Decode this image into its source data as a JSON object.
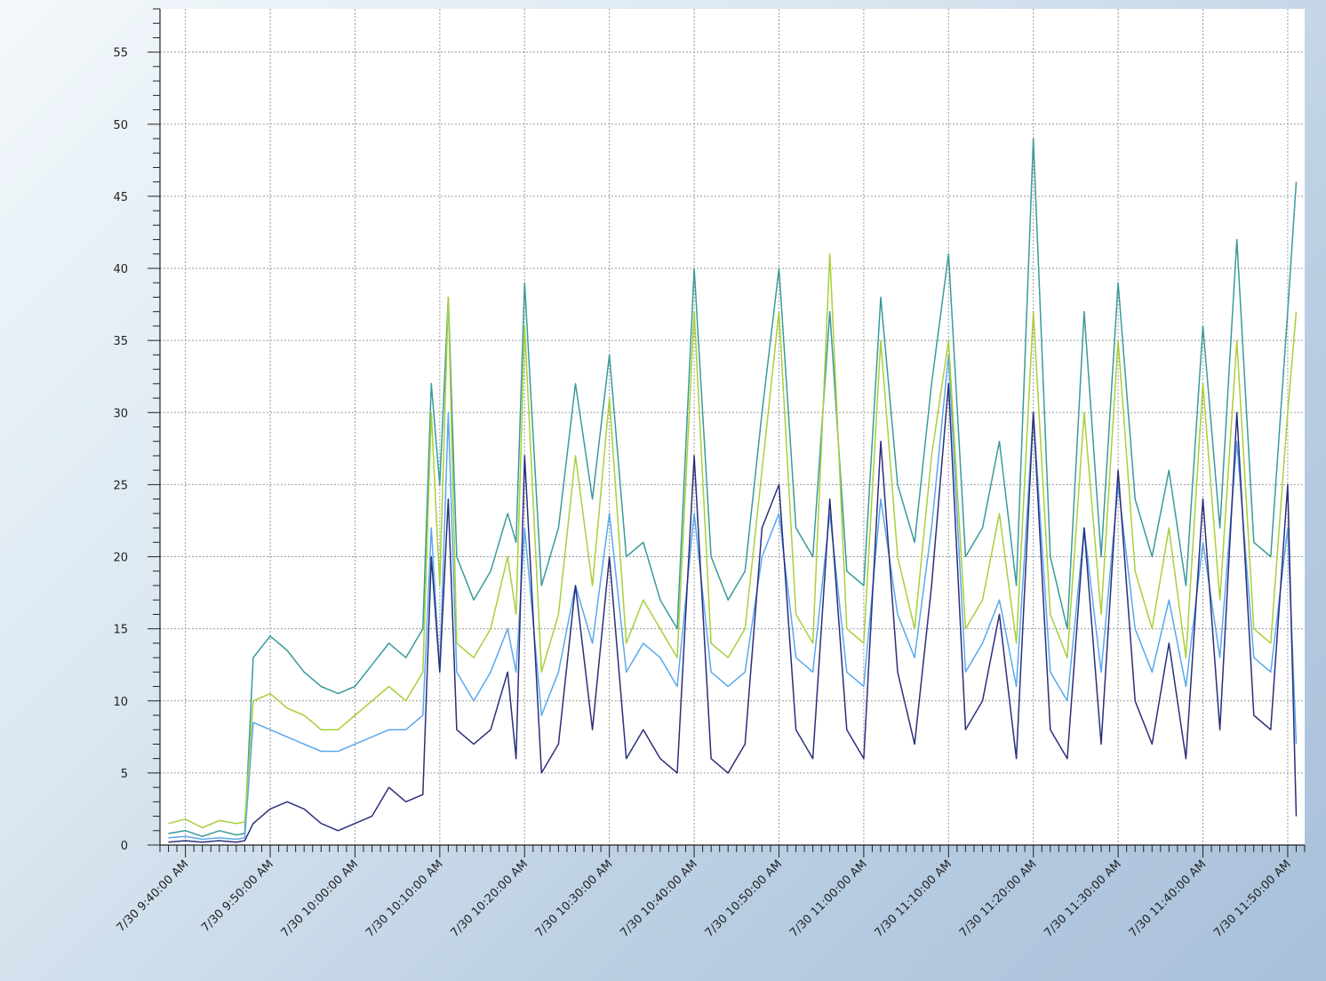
{
  "chart_data": {
    "type": "line",
    "title": "",
    "xlabel": "",
    "ylabel": "",
    "ylim": [
      0,
      58
    ],
    "yticks": [
      0,
      5,
      10,
      15,
      20,
      25,
      30,
      35,
      40,
      45,
      50,
      55
    ],
    "xlim": [
      "7/30 9:37:00 AM",
      "7/30 11:52:00 AM"
    ],
    "xticks": [
      "7/30 9:40:00 AM",
      "7/30 9:50:00 AM",
      "7/30 10:00:00 AM",
      "7/30 10:10:00 AM",
      "7/30 10:20:00 AM",
      "7/30 10:30:00 AM",
      "7/30 10:40:00 AM",
      "7/30 10:50:00 AM",
      "7/30 11:00:00 AM",
      "7/30 11:10:00 AM",
      "7/30 11:20:00 AM",
      "7/30 11:30:00 AM",
      "7/30 11:40:00 AM",
      "7/30 11:50:00 AM"
    ],
    "grid": true,
    "legend": "none",
    "x": [
      "9:38",
      "9:40",
      "9:42",
      "9:44",
      "9:46",
      "9:47",
      "9:48",
      "9:50",
      "9:52",
      "9:54",
      "9:56",
      "9:58",
      "10:00",
      "10:02",
      "10:04",
      "10:06",
      "10:08",
      "10:09",
      "10:10",
      "10:11",
      "10:12",
      "10:14",
      "10:16",
      "10:18",
      "10:19",
      "10:20",
      "10:22",
      "10:24",
      "10:26",
      "10:28",
      "10:30",
      "10:32",
      "10:34",
      "10:36",
      "10:38",
      "10:40",
      "10:42",
      "10:44",
      "10:46",
      "10:48",
      "10:50",
      "10:52",
      "10:54",
      "10:56",
      "10:58",
      "11:00",
      "11:02",
      "11:04",
      "11:06",
      "11:08",
      "11:10",
      "11:12",
      "11:14",
      "11:16",
      "11:18",
      "11:20",
      "11:22",
      "11:24",
      "11:26",
      "11:28",
      "11:30",
      "11:32",
      "11:34",
      "11:36",
      "11:38",
      "11:40",
      "11:42",
      "11:44",
      "11:46",
      "11:48",
      "11:50",
      "11:51"
    ],
    "series": [
      {
        "color": "#3a9a9a",
        "values": [
          0.8,
          1,
          0.6,
          1,
          0.7,
          0.8,
          13,
          14.5,
          13.5,
          12,
          11,
          10.5,
          11,
          12.5,
          14,
          13,
          15,
          32,
          25,
          38,
          20,
          17,
          19,
          23,
          21,
          39,
          18,
          22,
          32,
          24,
          34,
          20,
          21,
          17,
          15,
          40,
          20,
          17,
          19,
          30,
          40,
          22,
          20,
          37,
          19,
          18,
          38,
          25,
          21,
          32,
          41,
          20,
          22,
          28,
          18,
          49,
          20,
          15,
          37,
          20,
          39,
          24,
          20,
          26,
          18,
          36,
          22,
          42,
          21,
          20,
          37,
          46
        ]
      },
      {
        "color": "#5aa8ec",
        "values": [
          0.5,
          0.6,
          0.4,
          0.5,
          0.4,
          0.5,
          8.5,
          8,
          7.5,
          7,
          6.5,
          6.5,
          7,
          7.5,
          8,
          8,
          9,
          22,
          12,
          30,
          12,
          10,
          12,
          15,
          12,
          22,
          9,
          12,
          18,
          14,
          23,
          12,
          14,
          13,
          11,
          23,
          12,
          11,
          12,
          20,
          23,
          13,
          12,
          23,
          12,
          11,
          24,
          16,
          13,
          22,
          34,
          12,
          14,
          17,
          11,
          30,
          12,
          10,
          22,
          12,
          25,
          15,
          12,
          17,
          11,
          21,
          13,
          28,
          13,
          12,
          22,
          7
        ]
      },
      {
        "color": "#a8cf3a",
        "values": [
          1.5,
          1.8,
          1.2,
          1.7,
          1.5,
          1.6,
          10,
          10.5,
          9.5,
          9,
          8,
          8,
          9,
          10,
          11,
          10,
          12,
          30,
          18,
          38,
          14,
          13,
          15,
          20,
          16,
          36,
          12,
          16,
          27,
          18,
          31,
          14,
          17,
          15,
          13,
          37,
          14,
          13,
          15,
          26,
          37,
          16,
          14,
          41,
          15,
          14,
          35,
          20,
          15,
          27,
          35,
          15,
          17,
          23,
          14,
          37,
          16,
          13,
          30,
          16,
          35,
          19,
          15,
          22,
          13,
          32,
          17,
          35,
          15,
          14,
          30,
          37
        ]
      },
      {
        "color": "#2b2f7a",
        "values": [
          0.2,
          0.3,
          0.2,
          0.3,
          0.2,
          0.3,
          1.5,
          2.5,
          3,
          2.5,
          1.5,
          1,
          1.5,
          2,
          4,
          3,
          3.5,
          20,
          12,
          24,
          8,
          7,
          8,
          12,
          6,
          27,
          5,
          7,
          18,
          8,
          20,
          6,
          8,
          6,
          5,
          27,
          6,
          5,
          7,
          22,
          25,
          8,
          6,
          24,
          8,
          6,
          28,
          12,
          7,
          18,
          32,
          8,
          10,
          16,
          6,
          30,
          8,
          6,
          22,
          7,
          26,
          10,
          7,
          14,
          6,
          24,
          8,
          30,
          9,
          8,
          25,
          2
        ]
      }
    ]
  }
}
